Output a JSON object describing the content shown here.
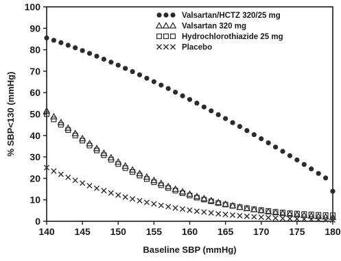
{
  "chart_data": {
    "type": "scatter",
    "xlabel": "Baseline SBP (mmHg)",
    "ylabel": "% SBP<130 (mmHg)",
    "xlim": [
      140,
      180
    ],
    "ylim": [
      0,
      100
    ],
    "x_ticks": [
      140,
      145,
      150,
      155,
      160,
      165,
      170,
      175,
      180
    ],
    "y_ticks": [
      0,
      10,
      20,
      30,
      40,
      50,
      60,
      70,
      80,
      90,
      100
    ],
    "legend_position": "top-right",
    "grid": false,
    "x": [
      140,
      141,
      142,
      143,
      144,
      145,
      146,
      147,
      148,
      149,
      150,
      151,
      152,
      153,
      154,
      155,
      156,
      157,
      158,
      159,
      160,
      161,
      162,
      163,
      164,
      165,
      166,
      167,
      168,
      169,
      170,
      171,
      172,
      173,
      174,
      175,
      176,
      177,
      178,
      179,
      180
    ],
    "series": [
      {
        "name": "Valsartan/HCTZ 320/25 mg",
        "marker": "filled-circle",
        "values": [
          85.5,
          84.4,
          83.3,
          82.1,
          80.9,
          79.6,
          78.3,
          77.0,
          75.6,
          74.2,
          72.8,
          71.3,
          69.8,
          68.3,
          66.7,
          65.1,
          63.5,
          61.9,
          60.2,
          58.5,
          56.8,
          55.1,
          53.3,
          51.5,
          49.7,
          47.9,
          46.0,
          44.2,
          42.3,
          40.4,
          38.5,
          36.6,
          34.6,
          32.6,
          30.6,
          28.6,
          26.5,
          24.4,
          22.3,
          20.2,
          14.0
        ]
      },
      {
        "name": "Valsartan 320 mg",
        "marker": "triangle",
        "values": [
          51.5,
          48.8,
          46.1,
          43.5,
          41.0,
          38.6,
          36.3,
          34.0,
          31.8,
          29.7,
          27.7,
          25.8,
          24.0,
          22.3,
          20.7,
          19.1,
          17.7,
          16.3,
          15.0,
          13.8,
          12.7,
          11.6,
          10.6,
          9.7,
          8.8,
          8.0,
          7.3,
          6.6,
          6.0,
          5.5,
          5.0,
          4.5,
          4.1,
          3.7,
          3.4,
          3.1,
          2.8,
          2.5,
          2.3,
          2.1,
          1.9
        ]
      },
      {
        "name": "Hydrochlorothiazide 25 mg",
        "marker": "open-square",
        "values": [
          50.0,
          47.5,
          45.0,
          42.5,
          40.0,
          37.6,
          35.3,
          33.0,
          30.8,
          28.7,
          26.7,
          24.8,
          23.0,
          21.3,
          19.7,
          18.2,
          16.8,
          15.5,
          14.3,
          13.1,
          12.0,
          11.0,
          10.1,
          9.3,
          8.5,
          7.8,
          7.2,
          6.6,
          6.1,
          5.6,
          5.2,
          4.8,
          4.4,
          4.1,
          3.8,
          3.6,
          3.4,
          3.2,
          3.0,
          2.9,
          2.8
        ]
      },
      {
        "name": "Placebo",
        "marker": "x",
        "values": [
          25.0,
          23.4,
          21.9,
          20.5,
          19.1,
          17.8,
          16.6,
          15.4,
          14.3,
          13.2,
          12.2,
          11.3,
          10.4,
          9.6,
          8.8,
          8.1,
          7.4,
          6.8,
          6.2,
          5.7,
          5.2,
          4.7,
          4.3,
          3.9,
          3.5,
          3.2,
          2.9,
          2.6,
          2.3,
          2.1,
          1.9,
          1.7,
          1.5,
          1.3,
          1.2,
          1.1,
          1.0,
          0.9,
          0.8,
          0.7,
          0.6
        ]
      }
    ]
  },
  "colors": {
    "ink": "#1a1a1a",
    "marker": "#2b2b2b",
    "background": "#ffffff"
  }
}
